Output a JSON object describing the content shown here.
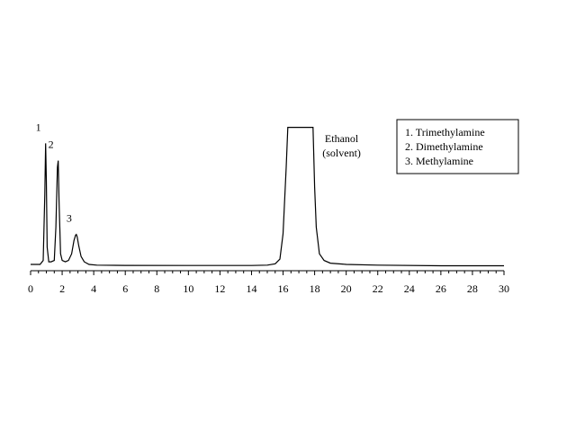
{
  "chart_data": {
    "type": "line",
    "title": "",
    "xlabel": "",
    "ylabel": "",
    "xlim": [
      0,
      30
    ],
    "x_ticks": [
      0,
      2,
      4,
      6,
      8,
      10,
      12,
      14,
      16,
      18,
      20,
      22,
      24,
      26,
      28,
      30
    ],
    "x_tick_labels": [
      "0",
      "2",
      "4",
      "6",
      "8",
      "10",
      "12",
      "14",
      "16",
      "18",
      "20",
      "22",
      "24",
      "26",
      "28",
      "30"
    ],
    "grid": false,
    "legend_placement": "top-right",
    "series": [
      {
        "x": [
          0,
          0.6,
          0.8,
          0.9,
          0.95,
          1.0,
          1.05,
          1.15,
          1.3,
          1.5,
          1.6,
          1.7,
          1.75,
          1.8,
          1.9,
          2.0,
          2.2,
          2.4,
          2.6,
          2.75,
          2.85,
          2.9,
          2.95,
          3.05,
          3.2,
          3.4,
          3.7,
          4.2,
          6,
          10,
          14,
          15.0,
          15.5,
          15.8,
          16.0,
          16.2,
          16.3,
          16.4,
          17.7,
          17.9,
          18.0,
          18.1,
          18.3,
          18.6,
          19.0,
          20,
          22,
          26,
          30
        ],
        "y": [
          0.02,
          0.02,
          0.05,
          0.55,
          0.93,
          0.65,
          0.15,
          0.04,
          0.04,
          0.05,
          0.3,
          0.75,
          0.8,
          0.5,
          0.1,
          0.05,
          0.04,
          0.05,
          0.1,
          0.2,
          0.24,
          0.245,
          0.23,
          0.16,
          0.08,
          0.04,
          0.02,
          0.015,
          0.013,
          0.012,
          0.012,
          0.015,
          0.025,
          0.06,
          0.25,
          0.75,
          1.05,
          1.05,
          1.05,
          1.05,
          0.6,
          0.3,
          0.1,
          0.05,
          0.03,
          0.02,
          0.015,
          0.01,
          0.01
        ]
      }
    ],
    "peak_labels": [
      {
        "text": "1",
        "x": 0.95
      },
      {
        "text": "2",
        "x": 1.75
      },
      {
        "text": "3",
        "x": 2.9
      }
    ],
    "annotation": {
      "lines": [
        "Ethanol",
        "(solvent)"
      ],
      "x": 18.0
    },
    "legend": {
      "entries": [
        "1. Trimethylamine",
        "2. Dimethylamine",
        "3. Methylamine"
      ]
    }
  }
}
